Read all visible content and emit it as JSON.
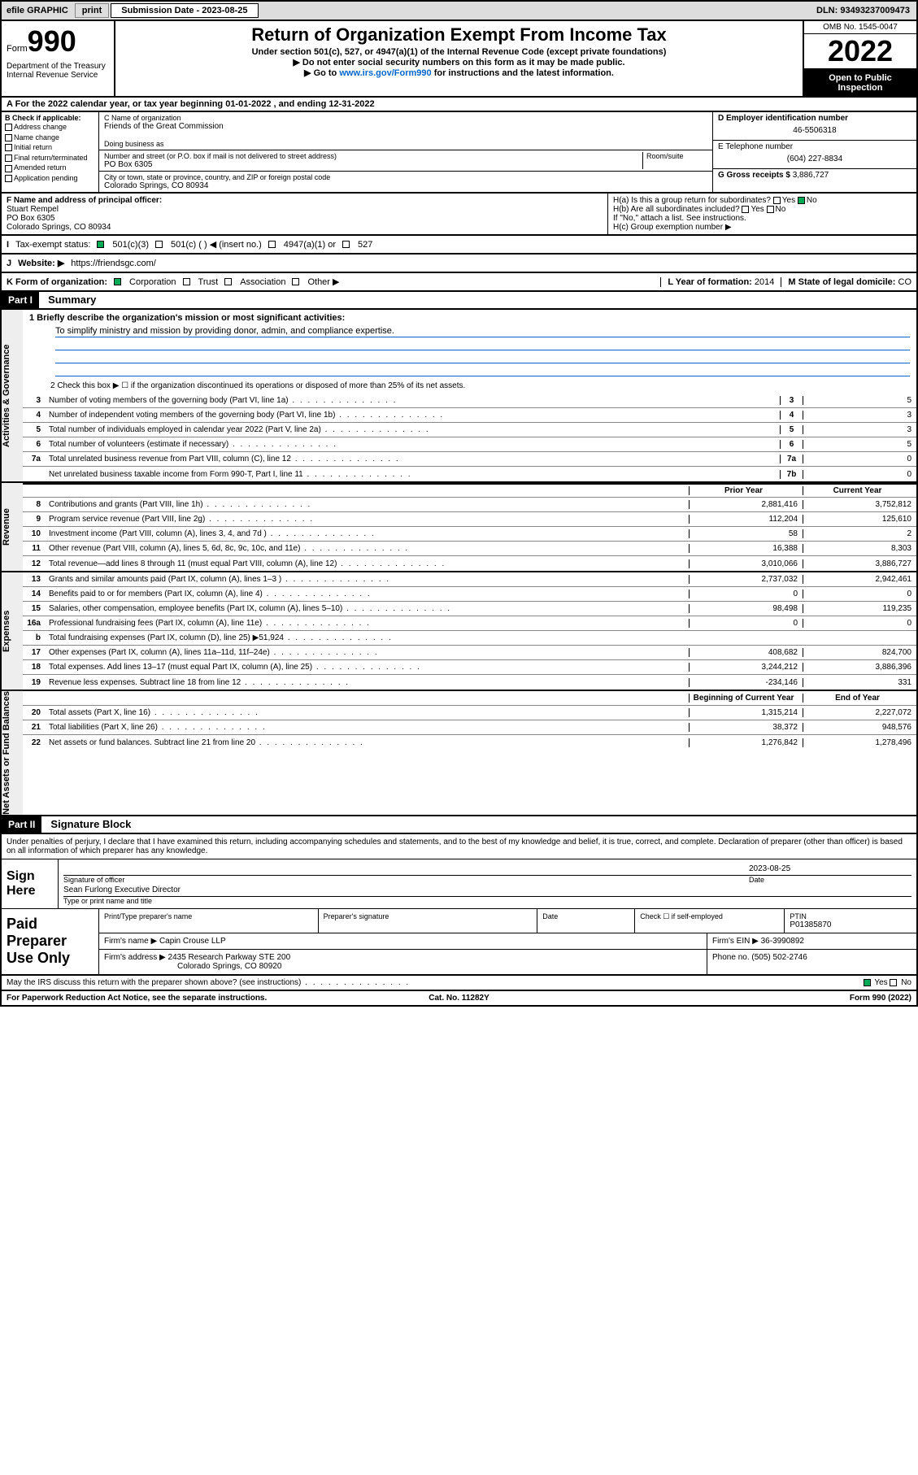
{
  "topbar": {
    "efile_label": "efile GRAPHIC",
    "print_btn": "print",
    "submission_label": "Submission Date - 2023-08-25",
    "dln": "DLN: 93493237009473"
  },
  "header": {
    "form_prefix": "Form",
    "form_number": "990",
    "title": "Return of Organization Exempt From Income Tax",
    "subtitle": "Under section 501(c), 527, or 4947(a)(1) of the Internal Revenue Code (except private foundations)",
    "note1": "▶ Do not enter social security numbers on this form as it may be made public.",
    "note2_pre": "▶ Go to ",
    "note2_link": "www.irs.gov/Form990",
    "note2_post": " for instructions and the latest information.",
    "omb": "OMB No. 1545-0047",
    "year": "2022",
    "open_public": "Open to Public Inspection",
    "dept": "Department of the Treasury Internal Revenue Service"
  },
  "year_line": "For the 2022 calendar year, or tax year beginning 01-01-2022   , and ending 12-31-2022",
  "section_b": {
    "label": "B Check if applicable:",
    "items": [
      "Address change",
      "Name change",
      "Initial return",
      "Final return/terminated",
      "Amended return",
      "Application pending"
    ]
  },
  "section_c": {
    "name_label": "C Name of organization",
    "name": "Friends of the Great Commission",
    "dba_label": "Doing business as",
    "addr_label": "Number and street (or P.O. box if mail is not delivered to street address)",
    "room_label": "Room/suite",
    "addr": "PO Box 6305",
    "city_label": "City or town, state or province, country, and ZIP or foreign postal code",
    "city": "Colorado Springs, CO  80934"
  },
  "section_d": {
    "ein_label": "D Employer identification number",
    "ein": "46-5506318",
    "phone_label": "E Telephone number",
    "phone": "(604) 227-8834",
    "gross_label": "G Gross receipts $",
    "gross": "3,886,727"
  },
  "section_f": {
    "label": "F Name and address of principal officer:",
    "name": "Stuart Rempel",
    "addr1": "PO Box 6305",
    "addr2": "Colorado Springs, CO  80934"
  },
  "section_h": {
    "ha": "H(a)  Is this a group return for subordinates?",
    "hb": "H(b)  Are all subordinates included?",
    "hb_note": "If \"No,\" attach a list. See instructions.",
    "hc": "H(c)  Group exemption number ▶",
    "yes": "Yes",
    "no": "No"
  },
  "row_i": {
    "label": "Tax-exempt status:",
    "opt1": "501(c)(3)",
    "opt2": "501(c) (  ) ◀ (insert no.)",
    "opt3": "4947(a)(1) or",
    "opt4": "527"
  },
  "row_j": {
    "label": "Website: ▶",
    "value": "https://friendsgc.com/"
  },
  "row_k": {
    "label": "K Form of organization:",
    "opts": [
      "Corporation",
      "Trust",
      "Association",
      "Other ▶"
    ],
    "l_label": "L Year of formation:",
    "l_val": "2014",
    "m_label": "M State of legal domicile:",
    "m_val": "CO"
  },
  "part1": {
    "header": "Part I",
    "title": "Summary",
    "line1_label": "1  Briefly describe the organization's mission or most significant activities:",
    "mission": "To simplify ministry and mission by providing donor, admin, and compliance expertise.",
    "line2": "2  Check this box ▶ ☐  if the organization discontinued its operations or disposed of more than 25% of its net assets.",
    "governance_label": "Activities & Governance",
    "revenue_label": "Revenue",
    "expenses_label": "Expenses",
    "netassets_label": "Net Assets or Fund Balances",
    "gov_rows": [
      {
        "num": "3",
        "text": "Number of voting members of the governing body (Part VI, line 1a)",
        "box": "3",
        "val": "5"
      },
      {
        "num": "4",
        "text": "Number of independent voting members of the governing body (Part VI, line 1b)",
        "box": "4",
        "val": "3"
      },
      {
        "num": "5",
        "text": "Total number of individuals employed in calendar year 2022 (Part V, line 2a)",
        "box": "5",
        "val": "3"
      },
      {
        "num": "6",
        "text": "Total number of volunteers (estimate if necessary)",
        "box": "6",
        "val": "5"
      },
      {
        "num": "7a",
        "text": "Total unrelated business revenue from Part VIII, column (C), line 12",
        "box": "7a",
        "val": "0"
      },
      {
        "num": "",
        "text": "Net unrelated business taxable income from Form 990-T, Part I, line 11",
        "box": "7b",
        "val": "0"
      }
    ],
    "prior_year": "Prior Year",
    "current_year": "Current Year",
    "beg_year": "Beginning of Current Year",
    "end_year": "End of Year",
    "rev_rows": [
      {
        "num": "8",
        "text": "Contributions and grants (Part VIII, line 1h)",
        "py": "2,881,416",
        "cy": "3,752,812"
      },
      {
        "num": "9",
        "text": "Program service revenue (Part VIII, line 2g)",
        "py": "112,204",
        "cy": "125,610"
      },
      {
        "num": "10",
        "text": "Investment income (Part VIII, column (A), lines 3, 4, and 7d )",
        "py": "58",
        "cy": "2"
      },
      {
        "num": "11",
        "text": "Other revenue (Part VIII, column (A), lines 5, 6d, 8c, 9c, 10c, and 11e)",
        "py": "16,388",
        "cy": "8,303"
      },
      {
        "num": "12",
        "text": "Total revenue—add lines 8 through 11 (must equal Part VIII, column (A), line 12)",
        "py": "3,010,066",
        "cy": "3,886,727"
      }
    ],
    "exp_rows": [
      {
        "num": "13",
        "text": "Grants and similar amounts paid (Part IX, column (A), lines 1–3 )",
        "py": "2,737,032",
        "cy": "2,942,461"
      },
      {
        "num": "14",
        "text": "Benefits paid to or for members (Part IX, column (A), line 4)",
        "py": "0",
        "cy": "0"
      },
      {
        "num": "15",
        "text": "Salaries, other compensation, employee benefits (Part IX, column (A), lines 5–10)",
        "py": "98,498",
        "cy": "119,235"
      },
      {
        "num": "16a",
        "text": "Professional fundraising fees (Part IX, column (A), line 11e)",
        "py": "0",
        "cy": "0"
      },
      {
        "num": "b",
        "text": "Total fundraising expenses (Part IX, column (D), line 25) ▶51,924",
        "py": "",
        "cy": ""
      },
      {
        "num": "17",
        "text": "Other expenses (Part IX, column (A), lines 11a–11d, 11f–24e)",
        "py": "408,682",
        "cy": "824,700"
      },
      {
        "num": "18",
        "text": "Total expenses. Add lines 13–17 (must equal Part IX, column (A), line 25)",
        "py": "3,244,212",
        "cy": "3,886,396"
      },
      {
        "num": "19",
        "text": "Revenue less expenses. Subtract line 18 from line 12",
        "py": "-234,146",
        "cy": "331"
      }
    ],
    "net_rows": [
      {
        "num": "20",
        "text": "Total assets (Part X, line 16)",
        "py": "1,315,214",
        "cy": "2,227,072"
      },
      {
        "num": "21",
        "text": "Total liabilities (Part X, line 26)",
        "py": "38,372",
        "cy": "948,576"
      },
      {
        "num": "22",
        "text": "Net assets or fund balances. Subtract line 21 from line 20",
        "py": "1,276,842",
        "cy": "1,278,496"
      }
    ]
  },
  "part2": {
    "header": "Part II",
    "title": "Signature Block",
    "intro": "Under penalties of perjury, I declare that I have examined this return, including accompanying schedules and statements, and to the best of my knowledge and belief, it is true, correct, and complete. Declaration of preparer (other than officer) is based on all information of which preparer has any knowledge.",
    "sign_here": "Sign Here",
    "sig_officer": "Signature of officer",
    "sig_date": "2023-08-25",
    "date_label": "Date",
    "officer_name": "Sean Furlong Executive Director",
    "type_label": "Type or print name and title",
    "paid_label": "Paid Preparer Use Only",
    "prep_name_label": "Print/Type preparer's name",
    "prep_sig_label": "Preparer's signature",
    "check_label": "Check ☐ if self-employed",
    "ptin_label": "PTIN",
    "ptin": "P01385870",
    "firm_name_label": "Firm's name   ▶",
    "firm_name": "Capin Crouse LLP",
    "firm_ein_label": "Firm's EIN ▶",
    "firm_ein": "36-3990892",
    "firm_addr_label": "Firm's address ▶",
    "firm_addr1": "2435 Research Parkway STE 200",
    "firm_addr2": "Colorado Springs, CO  80920",
    "phone_label": "Phone no.",
    "phone": "(505) 502-2746",
    "discuss": "May the IRS discuss this return with the preparer shown above? (see instructions)"
  },
  "footer": {
    "paperwork": "For Paperwork Reduction Act Notice, see the separate instructions.",
    "cat": "Cat. No. 11282Y",
    "form": "Form 990 (2022)"
  }
}
